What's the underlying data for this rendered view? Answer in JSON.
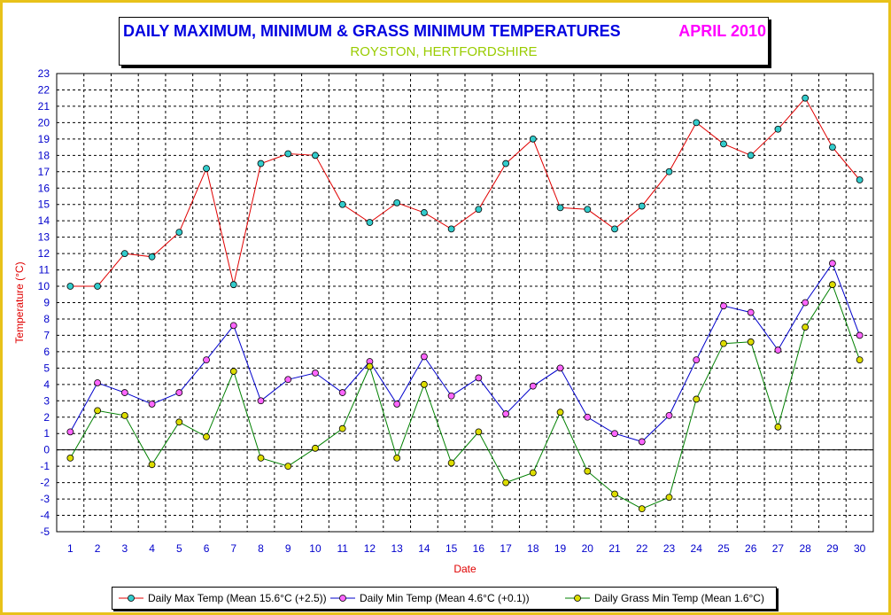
{
  "title": {
    "main": "DAILY MAXIMUM, MINIMUM & GRASS MINIMUM TEMPERATURES",
    "period": "APRIL 2010",
    "location": "ROYSTON, HERTFORDSHIRE"
  },
  "chart_data": {
    "type": "line",
    "xlabel": "Date",
    "ylabel": "Temperature (°C)",
    "ylim": [
      -5,
      23
    ],
    "grid": true,
    "legend_position": "bottom",
    "x": [
      1,
      2,
      3,
      4,
      5,
      6,
      7,
      8,
      9,
      10,
      11,
      12,
      13,
      14,
      15,
      16,
      17,
      18,
      19,
      20,
      21,
      22,
      23,
      24,
      25,
      26,
      27,
      28,
      29,
      30
    ],
    "yticks": [
      -5,
      -4,
      -3,
      -2,
      -1,
      0,
      1,
      2,
      3,
      4,
      5,
      6,
      7,
      8,
      9,
      10,
      11,
      12,
      13,
      14,
      15,
      16,
      17,
      18,
      19,
      20,
      21,
      22,
      23
    ],
    "series": [
      {
        "name": "Daily Max Temp (Mean 15.6°C (+2.5))",
        "line_color": "#e00000",
        "marker_color": "#33cccc",
        "values": [
          10.0,
          10.0,
          12.0,
          11.8,
          13.3,
          17.2,
          10.1,
          17.5,
          18.1,
          18.0,
          15.0,
          13.9,
          15.1,
          14.5,
          13.5,
          14.7,
          17.5,
          19.0,
          14.8,
          14.7,
          13.5,
          14.9,
          17.0,
          20.0,
          18.7,
          18.0,
          19.6,
          21.5,
          18.5,
          16.5
        ]
      },
      {
        "name": "Daily Min Temp (Mean 4.6°C (+0.1))",
        "line_color": "#0000cc",
        "marker_color": "#ff66ff",
        "values": [
          1.1,
          4.1,
          3.5,
          2.8,
          3.5,
          5.5,
          7.6,
          3.0,
          4.3,
          4.7,
          3.5,
          5.4,
          2.8,
          5.7,
          3.3,
          4.4,
          2.2,
          3.9,
          5.0,
          2.0,
          1.0,
          0.5,
          2.1,
          5.5,
          8.8,
          8.4,
          6.1,
          9.0,
          11.4,
          7.0
        ]
      },
      {
        "name": "Daily Grass Min Temp (Mean 1.6°C)",
        "line_color": "#008000",
        "marker_color": "#dddd00",
        "values": [
          -0.5,
          2.4,
          2.1,
          -0.9,
          1.7,
          0.8,
          4.8,
          -0.5,
          -1.0,
          0.1,
          1.3,
          5.1,
          -0.5,
          4.0,
          -0.8,
          1.1,
          -2.0,
          -1.4,
          2.3,
          -1.3,
          -2.7,
          -3.6,
          -2.9,
          3.1,
          6.5,
          6.6,
          1.4,
          7.5,
          10.1,
          5.5
        ]
      }
    ]
  },
  "colors": {
    "frame": "#e8c21a",
    "title_main": "#0000e0",
    "title_period": "#ff00ff",
    "title_location": "#99cc00",
    "axis_text": "#0000cc",
    "axis_title": "#e00000"
  }
}
